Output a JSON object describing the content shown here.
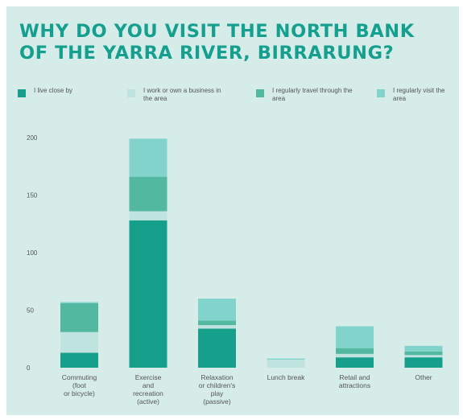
{
  "chart_data": {
    "type": "bar",
    "stacked": true,
    "title_lines": [
      "WHY DO YOU VISIT THE NORTH BANK",
      "OF THE YARRA RIVER, BIRRARUNG?"
    ],
    "categories": [
      [
        "Commuting",
        "(foot",
        "or bicycle)"
      ],
      [
        "Exercise",
        "and",
        "recreation",
        "(active)"
      ],
      [
        "Relaxation",
        "or children's",
        "play",
        "(passive)"
      ],
      [
        "Lunch break"
      ],
      [
        "Retail and",
        "attractions"
      ],
      [
        "Other"
      ]
    ],
    "series": [
      {
        "name": "I live close by",
        "color": "#16a08c",
        "values": [
          13,
          128,
          34,
          0,
          9,
          9
        ]
      },
      {
        "name": "I work or own a business in the area",
        "color": "#bfe3de",
        "values": [
          18,
          8,
          3,
          7,
          3,
          2
        ]
      },
      {
        "name": "I regularly travel through the area",
        "color": "#52b89f",
        "values": [
          25,
          30,
          4,
          0,
          5,
          3
        ]
      },
      {
        "name": "I regularly visit the area",
        "color": "#82d3cb",
        "values": [
          1,
          33,
          19,
          1,
          19,
          5
        ]
      }
    ],
    "yticks": [
      0,
      50,
      100,
      150,
      200
    ],
    "ylim": [
      0,
      200
    ],
    "legend_position": "top",
    "grid": false
  }
}
